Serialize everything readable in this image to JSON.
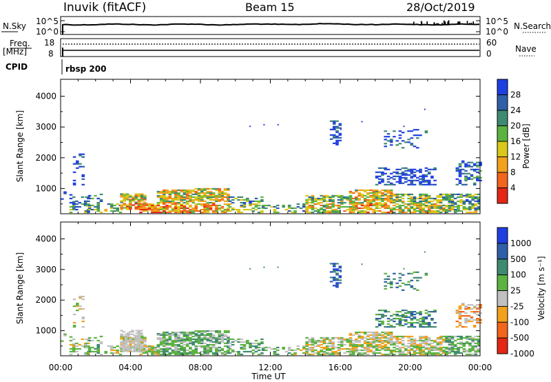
{
  "header": {
    "site": "Inuvik (fitACF)",
    "beam": "Beam 15",
    "date": "28/Oct/2019"
  },
  "top_panels": {
    "noise_label": "N.Sky",
    "noise_ticks_left": [
      "10^5",
      "10^0"
    ],
    "noise_ticks_right": [
      "10^5",
      "10^0"
    ],
    "search_label": "N.Search",
    "freq_label_1": "Freq.",
    "freq_label_2": "[MHz]",
    "freq_ticks": [
      "18",
      "8"
    ],
    "nave_ticks": [
      "60",
      "0"
    ],
    "nave_label": "Nave",
    "cpid_label": "CPID",
    "cpid_value": "rbsp 200"
  },
  "colors": {
    "power": [
      "#1f3fe0",
      "#2e5fa8",
      "#3f8a70",
      "#5db341",
      "#d8c81a",
      "#f2a11c",
      "#f1651c",
      "#e32616"
    ],
    "velocity": [
      "#1f3fe0",
      "#2e5fa8",
      "#3f8a70",
      "#5db341",
      "#c0c0c0",
      "#f2a11c",
      "#f1651c",
      "#e32616"
    ]
  },
  "chart_data": [
    {
      "type": "heatmap",
      "panel": "power",
      "ylabel": "Slant Range [km]",
      "xlabel": "",
      "xlim": [
        "00:00",
        "00:00"
      ],
      "ylim": [
        180,
        4550
      ],
      "xticks": [
        "00:00",
        "04:00",
        "08:00",
        "12:00",
        "16:00",
        "20:00",
        "00:00"
      ],
      "yticks": [
        "1000",
        "2000",
        "3000",
        "4000"
      ],
      "colorbar_label": "Power [dB]",
      "colorbar_ticks": [
        "4",
        "8",
        "12",
        "16",
        "20",
        "24",
        "28"
      ],
      "grid": false
    },
    {
      "type": "heatmap",
      "panel": "velocity",
      "ylabel": "Slant Range [km]",
      "xlabel": "Time UT",
      "xlim": [
        "00:00",
        "00:00"
      ],
      "ylim": [
        180,
        4550
      ],
      "xticks": [
        "00:00",
        "04:00",
        "08:00",
        "12:00",
        "16:00",
        "20:00",
        "00:00"
      ],
      "yticks": [
        "1000",
        "2000",
        "3000",
        "4000"
      ],
      "colorbar_label": "Velocity [m s⁻¹]",
      "colorbar_ticks": [
        "1000",
        "500",
        "100",
        "25",
        "-25",
        "-100",
        "-500",
        "-1000"
      ],
      "grid": false
    }
  ]
}
